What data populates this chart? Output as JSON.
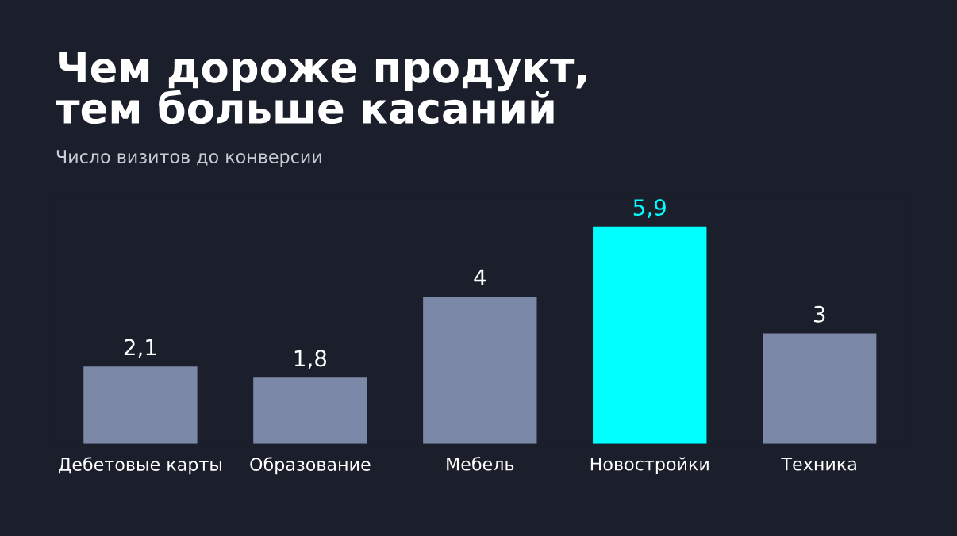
{
  "chart_data": {
    "type": "bar",
    "title": "Чем дороже продукт,\nтем больше касаний",
    "subtitle": "Число визитов до конверсии",
    "categories": [
      "Дебетовые карты",
      "Образование",
      "Мебель",
      "Новостройки",
      "Техника"
    ],
    "values": [
      2.1,
      1.8,
      4,
      5.9,
      3
    ],
    "value_labels": [
      "2,1",
      "1,8",
      "4",
      "5,9",
      "3"
    ],
    "colors": [
      "#7b88a8",
      "#7b88a8",
      "#7b88a8",
      "#00ffff",
      "#7b88a8"
    ],
    "grid": false,
    "legend": false
  }
}
